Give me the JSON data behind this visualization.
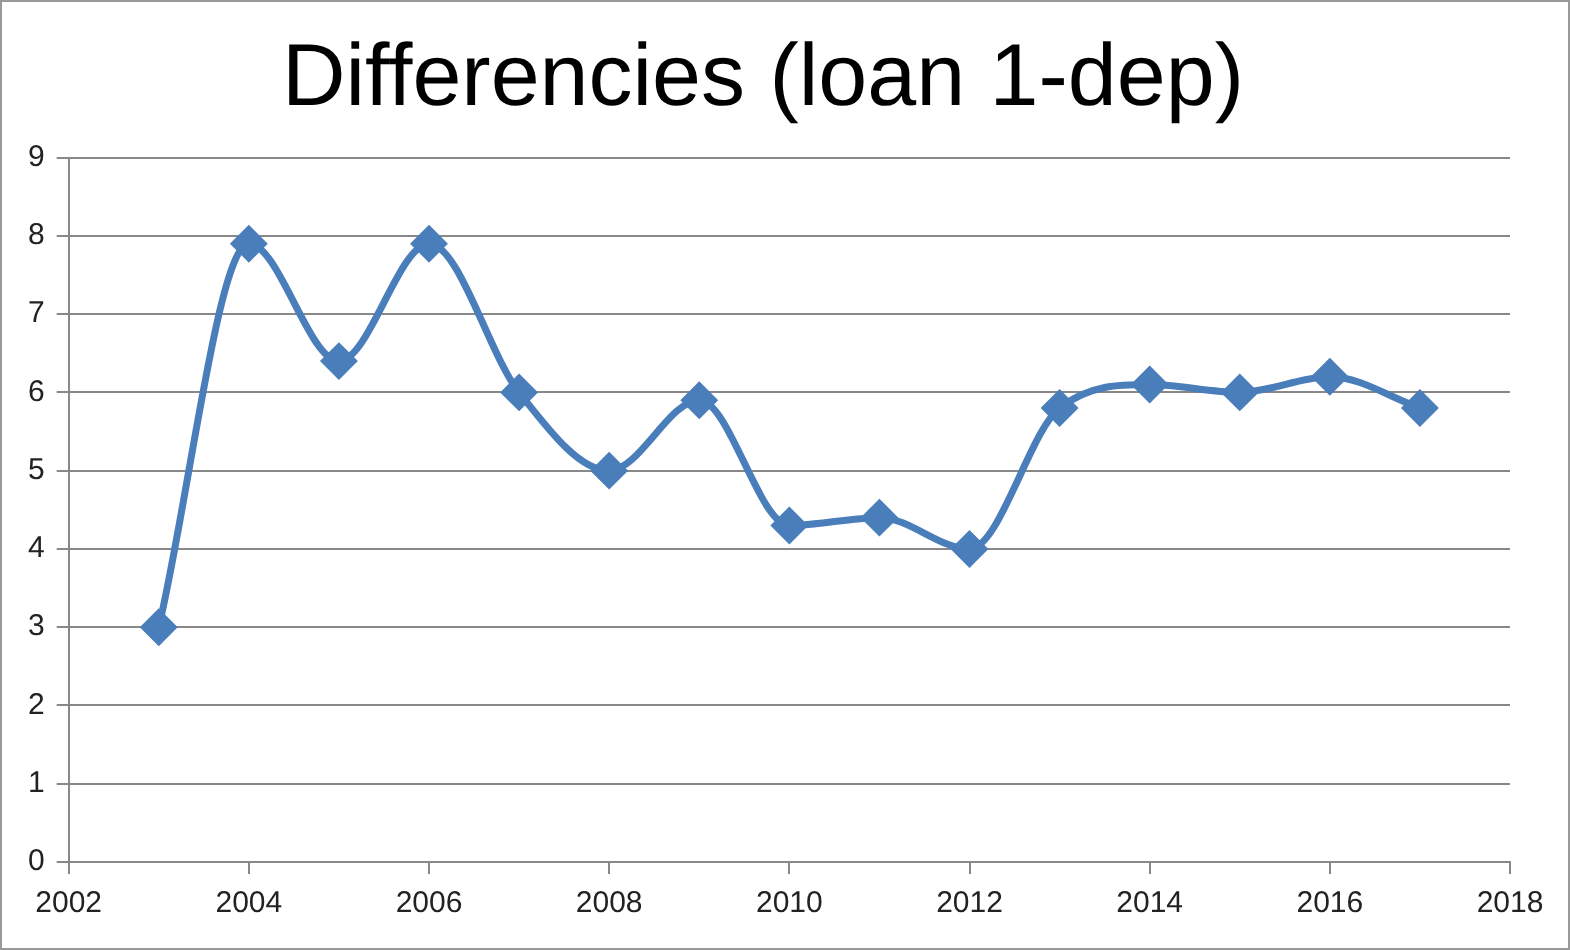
{
  "chart_data": {
    "type": "line",
    "title": "Differencies (loan 1-dep)",
    "x": [
      2003,
      2004,
      2005,
      2006,
      2007,
      2008,
      2009,
      2010,
      2011,
      2012,
      2013,
      2014,
      2015,
      2016,
      2017
    ],
    "series": [
      {
        "color": "#4a7ebb",
        "values": [
          3.0,
          7.9,
          6.4,
          7.9,
          6.0,
          5.0,
          5.9,
          4.3,
          4.4,
          4.0,
          5.8,
          6.1,
          6.0,
          6.2,
          5.8
        ]
      }
    ],
    "xlim": [
      2002,
      2018
    ],
    "xticks": [
      2002,
      2004,
      2006,
      2008,
      2010,
      2012,
      2014,
      2016,
      2018
    ],
    "ylim": [
      0,
      9
    ],
    "yticks": [
      0,
      1,
      2,
      3,
      4,
      5,
      6,
      7,
      8,
      9
    ],
    "grid": "y",
    "legend": false,
    "marker": "diamond",
    "line_style": "solid"
  }
}
